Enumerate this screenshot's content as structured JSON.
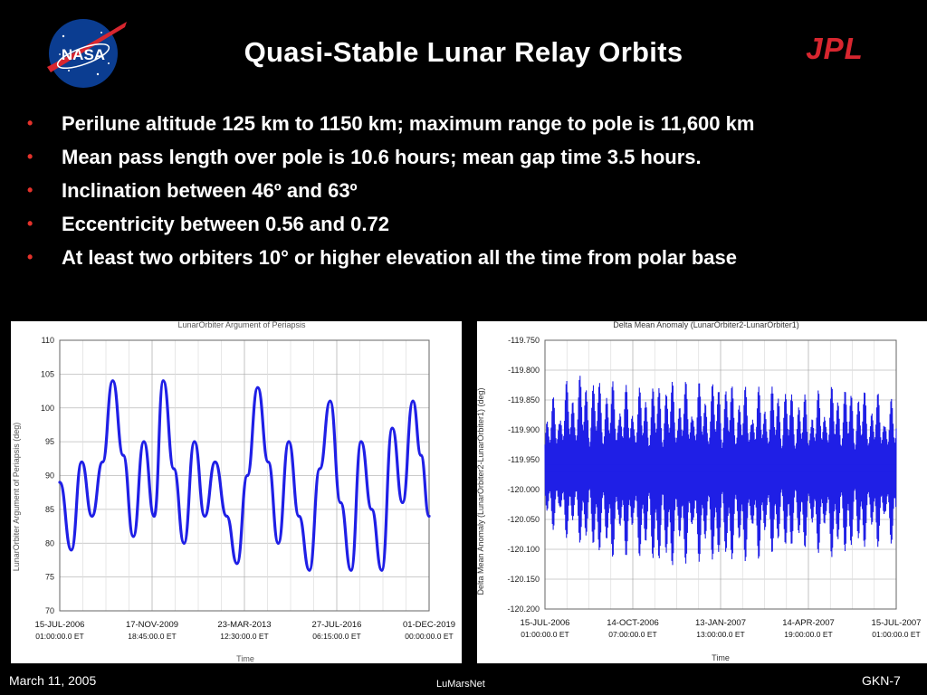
{
  "slide": {
    "title": "Quasi-Stable Lunar Relay Orbits",
    "nasa_logo_text": "NASA",
    "jpl_logo_text": "JPL",
    "bullet_marker": "•",
    "bullets": [
      "Perilune altitude 125 km to 1150 km; maximum range to pole is 11,600 km",
      "Mean pass length over pole is 10.6 hours; mean gap time 3.5 hours.",
      "Inclination between 46º and 63º",
      "Eccentricity between 0.56 and 0.72",
      "At least two orbiters 10° or higher elevation all the time from polar base"
    ]
  },
  "footer": {
    "date": "March 11, 2005",
    "center": "LuMarsNet",
    "page": "GKN-7"
  },
  "colors": {
    "series": "#1f1fe6",
    "bullet": "#e4322b",
    "jpl": "#d8262f",
    "nasa_blue": "#0b3d91"
  },
  "chart_data": [
    {
      "type": "line",
      "title": "LunarOrbiter Argument of Periapsis",
      "xlabel": "Time",
      "ylabel": "LunarOrbiter Argument of Periapsis (deg)",
      "ylim": [
        70,
        110
      ],
      "yticks": [
        "110",
        "105",
        "100",
        "95",
        "90",
        "85",
        "80",
        "75",
        "70"
      ],
      "xticks": [
        {
          "date": "15-JUL-2006",
          "time": "01:00:00.0 ET"
        },
        {
          "date": "17-NOV-2009",
          "time": "18:45:00.0 ET"
        },
        {
          "date": "23-MAR-2013",
          "time": "12:30:00.0 ET"
        },
        {
          "date": "27-JUL-2016",
          "time": "06:15:00.0 ET"
        },
        {
          "date": "01-DEC-2019",
          "time": "00:00:00.0 ET"
        }
      ],
      "xlim": [
        "2006-07-15",
        "2019-12-01"
      ],
      "grid": true,
      "series": [
        {
          "x": [
            "2006-07-15",
            "2006-12-15",
            "2007-05-01",
            "2007-09-15",
            "2008-02-01",
            "2008-06-15",
            "2008-11-01",
            "2009-03-15",
            "2009-08-01",
            "2009-12-15",
            "2010-04-15",
            "2010-09-01",
            "2011-01-15",
            "2011-06-01",
            "2011-10-15",
            "2012-03-01",
            "2012-08-01",
            "2012-12-15",
            "2013-05-01",
            "2013-09-15",
            "2014-02-01",
            "2014-06-15",
            "2014-11-01",
            "2015-03-15",
            "2015-08-01",
            "2015-12-15",
            "2016-05-01",
            "2016-09-15",
            "2017-02-01",
            "2017-06-15",
            "2017-11-01",
            "2018-03-15",
            "2018-08-01",
            "2018-12-15",
            "2019-05-01",
            "2019-08-15",
            "2019-12-01"
          ],
          "y": [
            89,
            79,
            92,
            84,
            92,
            104,
            93,
            81,
            95,
            84,
            104,
            91,
            80,
            95,
            84,
            92,
            84,
            77,
            90,
            103,
            92,
            80,
            95,
            84,
            76,
            91,
            101,
            86,
            76,
            95,
            85,
            76,
            97,
            86,
            101,
            93,
            84
          ]
        }
      ]
    },
    {
      "type": "line",
      "title": "Delta Mean Anomaly (LunarOrbiter2-LunarOrbiter1)",
      "xlabel": "Time",
      "ylabel": "Delta Mean Anomaly (LunarOrbiter2-LunarOrbiter1) (deg)",
      "ylim": [
        -120.2,
        -119.75
      ],
      "yticks": [
        "-119.750",
        "-119.800",
        "-119.850",
        "-119.900",
        "-119.950",
        "-120.000",
        "-120.050",
        "-120.100",
        "-120.150",
        "-120.200"
      ],
      "xticks": [
        {
          "date": "15-JUL-2006",
          "time": "01:00:00.0 ET"
        },
        {
          "date": "14-OCT-2006",
          "time": "07:00:00.0 ET"
        },
        {
          "date": "13-JAN-2007",
          "time": "13:00:00.0 ET"
        },
        {
          "date": "14-APR-2007",
          "time": "19:00:00.0 ET"
        },
        {
          "date": "15-JUL-2007",
          "time": "01:00:00.0 ET"
        }
      ],
      "xlim": [
        "2006-07-15",
        "2007-07-15"
      ],
      "grid": true,
      "series": [
        {
          "mean": -119.965,
          "x_envelope": [
            "2006-07-15",
            "2006-08-15",
            "2006-09-15",
            "2006-10-15",
            "2006-11-15",
            "2006-12-15",
            "2007-01-15",
            "2007-02-15",
            "2007-03-15",
            "2007-04-15",
            "2007-05-15",
            "2007-06-15",
            "2007-07-15"
          ],
          "upper": [
            -119.86,
            -119.8,
            -119.81,
            -119.83,
            -119.81,
            -119.82,
            -119.81,
            -119.83,
            -119.82,
            -119.84,
            -119.82,
            -119.83,
            -119.85
          ],
          "lower": [
            -120.06,
            -120.09,
            -120.12,
            -120.11,
            -120.14,
            -120.12,
            -120.13,
            -120.12,
            -120.11,
            -120.1,
            -120.12,
            -120.1,
            -120.09
          ]
        }
      ]
    }
  ]
}
